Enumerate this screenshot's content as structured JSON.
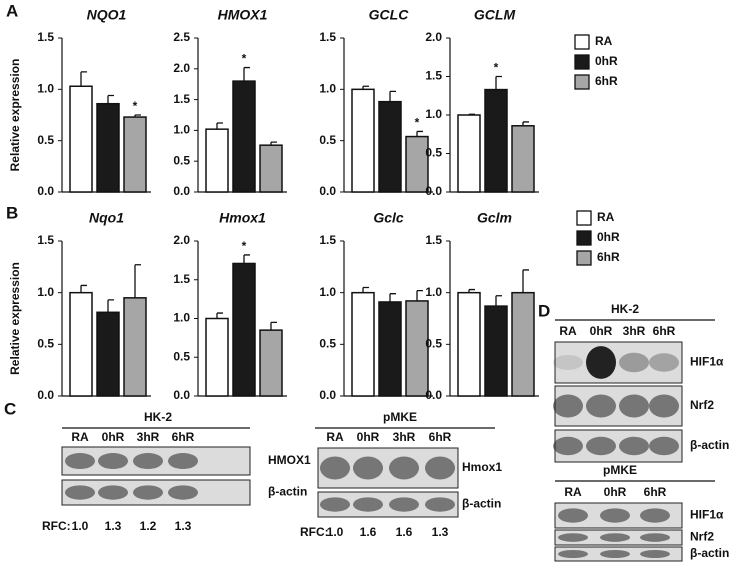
{
  "panel_labels": [
    "A",
    "B",
    "C",
    "D"
  ],
  "chart_data": [
    {
      "type": "bar",
      "title": "NQO1",
      "ylabel": "Relative expression",
      "categories": [
        null
      ],
      "ylim": [
        0,
        1.5
      ],
      "yticks": [
        {
          "value": 0,
          "label": "0.0"
        },
        0.5,
        {
          "value": 1,
          "label": "1.0"
        },
        1.5
      ],
      "series": [
        {
          "name": "RA",
          "color": "#ffffff",
          "values": [
            1.03
          ],
          "errors": [
            0.14
          ]
        },
        {
          "name": "0hR",
          "color": "#1a1a1a",
          "values": [
            0.86
          ],
          "errors": [
            0.08
          ]
        },
        {
          "name": "6hR",
          "color": "#a6a6a6",
          "values": [
            0.73
          ],
          "errors": [
            0.02
          ],
          "annotation": "*"
        }
      ]
    },
    {
      "type": "bar",
      "title": "HMOX1",
      "categories": [
        null
      ],
      "ylim": [
        0,
        2.5
      ],
      "yticks": [
        {
          "value": 0,
          "label": "0.0"
        },
        0.5,
        {
          "value": 1,
          "label": "1.0"
        },
        1.5,
        {
          "value": 2,
          "label": "2.0"
        },
        2.5
      ],
      "series": [
        {
          "name": "RA",
          "color": "#ffffff",
          "values": [
            1.02
          ],
          "errors": [
            0.1
          ]
        },
        {
          "name": "0hR",
          "color": "#1a1a1a",
          "values": [
            1.8
          ],
          "errors": [
            0.22
          ],
          "annotation": "*"
        },
        {
          "name": "6hR",
          "color": "#a6a6a6",
          "values": [
            0.76
          ],
          "errors": [
            0.05
          ]
        }
      ]
    },
    {
      "type": "bar",
      "title": "GCLC",
      "categories": [
        null
      ],
      "ylim": [
        0,
        1.5
      ],
      "yticks": [
        {
          "value": 0,
          "label": "0.0"
        },
        0.5,
        {
          "value": 1,
          "label": "1.0"
        },
        1.5
      ],
      "series": [
        {
          "name": "RA",
          "color": "#ffffff",
          "values": [
            1.0
          ],
          "errors": [
            0.03
          ]
        },
        {
          "name": "0hR",
          "color": "#1a1a1a",
          "values": [
            0.88
          ],
          "errors": [
            0.1
          ]
        },
        {
          "name": "6hR",
          "color": "#a6a6a6",
          "values": [
            0.54
          ],
          "errors": [
            0.05
          ],
          "annotation": "*"
        }
      ]
    },
    {
      "type": "bar",
      "title": "GCLM",
      "categories": [
        null
      ],
      "ylim": [
        0,
        2
      ],
      "yticks": [
        {
          "value": 0,
          "label": "0.0"
        },
        0.5,
        {
          "value": 1,
          "label": "1.0"
        },
        1.5,
        {
          "value": 2,
          "label": "2.0"
        }
      ],
      "series": [
        {
          "name": "RA",
          "color": "#ffffff",
          "values": [
            1.0
          ],
          "errors": [
            0.01
          ]
        },
        {
          "name": "0hR",
          "color": "#1a1a1a",
          "values": [
            1.33
          ],
          "errors": [
            0.17
          ],
          "annotation": "*"
        },
        {
          "name": "6hR",
          "color": "#a6a6a6",
          "values": [
            0.86
          ],
          "errors": [
            0.05
          ]
        }
      ]
    },
    {
      "type": "bar",
      "title": "Nqo1",
      "ylabel": "Relative expression",
      "categories": [
        null
      ],
      "ylim": [
        0,
        1.5
      ],
      "yticks": [
        {
          "value": 0,
          "label": "0.0"
        },
        0.5,
        {
          "value": 1,
          "label": "1.0"
        },
        1.5
      ],
      "series": [
        {
          "name": "RA",
          "color": "#ffffff",
          "values": [
            1.0
          ],
          "errors": [
            0.07
          ]
        },
        {
          "name": "0hR",
          "color": "#1a1a1a",
          "values": [
            0.81
          ],
          "errors": [
            0.12
          ]
        },
        {
          "name": "6hR",
          "color": "#a6a6a6",
          "values": [
            0.95
          ],
          "errors": [
            0.32
          ]
        }
      ]
    },
    {
      "type": "bar",
      "title": "Hmox1",
      "categories": [
        null
      ],
      "ylim": [
        0,
        2
      ],
      "yticks": [
        {
          "value": 0,
          "label": "0.0"
        },
        0.5,
        {
          "value": 1,
          "label": "1.0"
        },
        1.5,
        {
          "value": 2,
          "label": "2.0"
        }
      ],
      "series": [
        {
          "name": "RA",
          "color": "#ffffff",
          "values": [
            1.0
          ],
          "errors": [
            0.07
          ]
        },
        {
          "name": "0hR",
          "color": "#1a1a1a",
          "values": [
            1.71
          ],
          "errors": [
            0.11
          ],
          "annotation": "*"
        },
        {
          "name": "6hR",
          "color": "#a6a6a6",
          "values": [
            0.85
          ],
          "errors": [
            0.1
          ]
        }
      ]
    },
    {
      "type": "bar",
      "title": "Gclc",
      "categories": [
        null
      ],
      "ylim": [
        0,
        1.5
      ],
      "yticks": [
        {
          "value": 0,
          "label": "0.0"
        },
        0.5,
        {
          "value": 1,
          "label": "1.0"
        },
        1.5
      ],
      "series": [
        {
          "name": "RA",
          "color": "#ffffff",
          "values": [
            1.0
          ],
          "errors": [
            0.05
          ]
        },
        {
          "name": "0hR",
          "color": "#1a1a1a",
          "values": [
            0.91
          ],
          "errors": [
            0.08
          ]
        },
        {
          "name": "6hR",
          "color": "#a6a6a6",
          "values": [
            0.92
          ],
          "errors": [
            0.1
          ]
        }
      ]
    },
    {
      "type": "bar",
      "title": "Gclm",
      "categories": [
        null
      ],
      "ylim": [
        0,
        1.5
      ],
      "yticks": [
        {
          "value": 0,
          "label": "0.0"
        },
        0.5,
        {
          "value": 1,
          "label": "1.0"
        },
        1.5
      ],
      "series": [
        {
          "name": "RA",
          "color": "#ffffff",
          "values": [
            1.0
          ],
          "errors": [
            0.03
          ]
        },
        {
          "name": "0hR",
          "color": "#1a1a1a",
          "values": [
            0.87
          ],
          "errors": [
            0.1
          ]
        },
        {
          "name": "6hR",
          "color": "#a6a6a6",
          "values": [
            1.0
          ],
          "errors": [
            0.22
          ]
        }
      ]
    }
  ],
  "panel_c": {
    "blots": [
      {
        "title": "HK-2",
        "lanes": [
          "RA",
          "0hR",
          "3hR",
          "6hR"
        ],
        "rows": [
          "HMOX1",
          "β-actin"
        ],
        "rfc_label": "RFC:",
        "rfc": [
          "1.0",
          "1.3",
          "1.2",
          "1.3"
        ]
      },
      {
        "title": "pMKE",
        "lanes": [
          "RA",
          "0hR",
          "3hR",
          "6hR"
        ],
        "rows": [
          "Hmox1",
          "β-actin"
        ],
        "rfc_label": "RFC:",
        "rfc": [
          "1.0",
          "1.6",
          "1.6",
          "1.3"
        ]
      }
    ]
  },
  "panel_d": {
    "blots": [
      {
        "title": "HK-2",
        "lanes": [
          "RA",
          "0hR",
          "3hR",
          "6hR"
        ],
        "rows": [
          "HIF1α",
          "Nrf2",
          "β-actin"
        ]
      },
      {
        "title": "pMKE",
        "lanes": [
          "RA",
          "0hR",
          "6hR"
        ],
        "rows": [
          "HIF1α",
          "Nrf2",
          "β-actin"
        ]
      }
    ]
  }
}
